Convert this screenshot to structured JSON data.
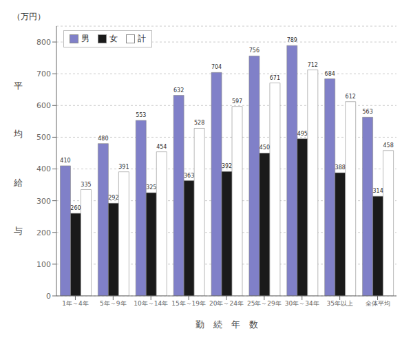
{
  "chart_data": {
    "type": "bar",
    "title": "（万円）",
    "categories": [
      "1年～4年",
      "5年～9年",
      "10年～14年",
      "15年～19年",
      "20年～24年",
      "25年～29年",
      "30年～34年",
      "35年以上",
      "全体平均"
    ],
    "series": [
      {
        "name": "男",
        "color": "#8080c8",
        "values": [
          410,
          480,
          553,
          632,
          704,
          756,
          789,
          684,
          563
        ]
      },
      {
        "name": "女",
        "color": "#1a1a1a",
        "values": [
          260,
          292,
          325,
          363,
          392,
          450,
          495,
          388,
          314
        ]
      },
      {
        "name": "計",
        "color": "#ffffff",
        "values": [
          335,
          391,
          454,
          528,
          597,
          671,
          712,
          612,
          458
        ]
      }
    ],
    "xlabel": "勤　続　年　数",
    "ylabel": "平均給与",
    "ylim": [
      0,
      850
    ],
    "yticks": [
      0,
      100,
      200,
      300,
      400,
      500,
      600,
      700,
      800
    ],
    "grid": true,
    "legend": "upper left",
    "data_labels": true
  }
}
